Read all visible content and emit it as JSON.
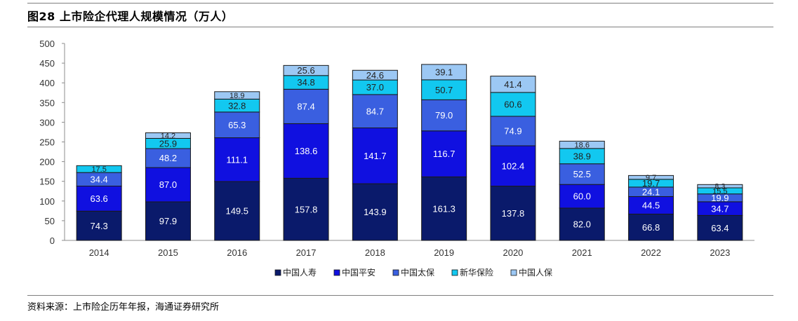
{
  "header": {
    "title": "图28 上市险企代理人规模情况（万人）"
  },
  "footer": {
    "source": "资料来源：上市险企历年年报，海通证券研究所"
  },
  "chart_data": {
    "type": "bar",
    "stacked": true,
    "title": "上市险企代理人规模情况（万人）",
    "categories": [
      "2014",
      "2015",
      "2016",
      "2017",
      "2018",
      "2019",
      "2020",
      "2021",
      "2022",
      "2023"
    ],
    "ylim": [
      0,
      500
    ],
    "yticks": [
      0,
      50,
      100,
      150,
      200,
      250,
      300,
      350,
      400,
      450,
      500
    ],
    "legend_position": "bottom",
    "series": [
      {
        "name": "中国人寿",
        "color": "#0a1a6b",
        "values": [
          74.3,
          97.9,
          149.5,
          157.8,
          143.9,
          161.3,
          137.8,
          82.0,
          66.8,
          63.4
        ],
        "labels": [
          "74.3",
          "97.9",
          "149.5",
          "157.8",
          "143.9",
          "161.3",
          "137.8",
          "82.0",
          "66.8",
          "63.4"
        ]
      },
      {
        "name": "中国平安",
        "color": "#1010e0",
        "values": [
          63.6,
          87.0,
          111.1,
          138.6,
          141.7,
          116.7,
          102.4,
          60.0,
          44.5,
          34.7
        ],
        "labels": [
          "63.6",
          "87.0",
          "111.1",
          "138.6",
          "141.7",
          "116.7",
          "102.4",
          "60.0",
          "44.5",
          "34.7"
        ]
      },
      {
        "name": "中国太保",
        "color": "#3a5fe0",
        "values": [
          34.4,
          48.2,
          65.3,
          87.4,
          84.7,
          79.0,
          74.9,
          52.5,
          24.1,
          19.9
        ],
        "labels": [
          "34.4",
          "48.2",
          "65.3",
          "87.4",
          "84.7",
          "79.0",
          "74.9",
          "52.5",
          "24.1",
          "19.9"
        ]
      },
      {
        "name": "新华保险",
        "color": "#12c8f0",
        "values": [
          17.5,
          25.9,
          32.8,
          34.8,
          37.0,
          50.7,
          60.6,
          38.9,
          19.7,
          15.5
        ],
        "labels": [
          "17.5",
          "25.9",
          "32.8",
          "34.8",
          "37.0",
          "50.7",
          "60.6",
          "38.9",
          "19.7",
          "15.5"
        ]
      },
      {
        "name": "中国人保",
        "color": "#9cc8f4",
        "values": [
          0,
          14.2,
          18.9,
          25.6,
          24.6,
          39.1,
          41.4,
          18.6,
          9.7,
          8.3
        ],
        "labels": [
          "",
          "14.2",
          "18.9",
          "25.6",
          "24.6",
          "39.1",
          "41.4",
          "18.6",
          "9.7",
          "8.3"
        ]
      }
    ]
  }
}
